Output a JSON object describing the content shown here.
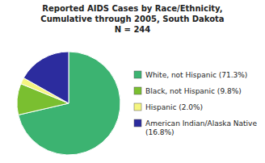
{
  "chart_data": {
    "type": "pie",
    "title": "Reported AIDS Cases by Race/Ethnicity,\nCumulative through 2005, South Dakota\nN = 244",
    "categories": [
      "White, not Hispanic (71.3%)",
      "Black, not Hispanic (9.8%)",
      "Hispanic (2.0%)",
      "American Indian/Alaska Native\n(16.8%)"
    ],
    "values": [
      71.3,
      9.8,
      2.0,
      16.8
    ],
    "colors": [
      "#3cb371",
      "#7abf30",
      "#f5f580",
      "#2c2c9e"
    ],
    "legend": "right"
  }
}
